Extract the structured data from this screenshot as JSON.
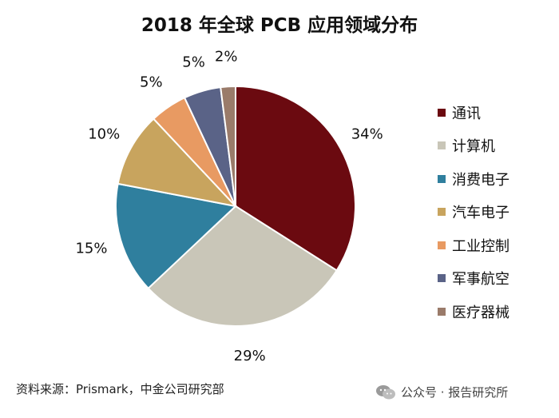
{
  "title": "2018 年全球 PCB 应用领域分布",
  "chart_data": {
    "type": "pie",
    "categories": [
      "通讯",
      "计算机",
      "消费电子",
      "汽车电子",
      "工业控制",
      "军事航空",
      "医疗器械"
    ],
    "values": [
      34,
      29,
      15,
      10,
      5,
      5,
      2
    ],
    "labels": [
      "34%",
      "29%",
      "15%",
      "10%",
      "5%",
      "5%",
      "2%"
    ],
    "colors": [
      "#6b0a10",
      "#c9c6b8",
      "#2f7f9e",
      "#c8a45e",
      "#e89a62",
      "#5a6387",
      "#9a7b6a"
    ],
    "legend_position": "right",
    "start_angle": "top",
    "direction": "clockwise"
  },
  "source": "资料来源：Prismark，中金公司研究部",
  "watermark": {
    "text": "公众号 · 报告研究所",
    "icon": "wechat-icon"
  }
}
